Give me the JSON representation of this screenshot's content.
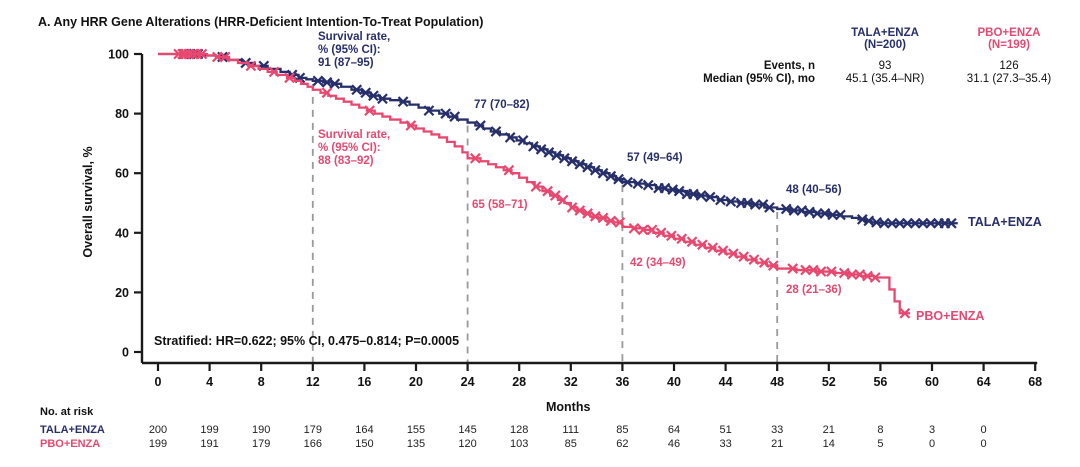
{
  "title": "A. Any HRR Gene Alterations (HRR-Deficient Intention-To-Treat Population)",
  "chart_data": {
    "type": "line",
    "subtype": "kaplan-meier-step",
    "title": "A. Any HRR Gene Alterations (HRR-Deficient Intention-To-Treat Population)",
    "xlabel": "Months",
    "ylabel": "Overall survival, %",
    "xlim": [
      0,
      68
    ],
    "ylim": [
      0,
      100
    ],
    "x_ticks": [
      0,
      4,
      8,
      12,
      16,
      20,
      24,
      28,
      32,
      36,
      40,
      44,
      48,
      52,
      56,
      60,
      64,
      68
    ],
    "y_ticks": [
      0,
      20,
      40,
      60,
      80,
      100
    ],
    "grid": false,
    "dashed_reference_months": [
      12,
      24,
      36,
      48
    ],
    "colors": {
      "tala": "#272f6b",
      "pbo": "#e8486f",
      "axis": "#1a1a1a",
      "dash": "#9a9a9a"
    },
    "series": [
      {
        "name": "TALA+ENZA",
        "end_label": "TALA+ENZA",
        "color": "#272f6b",
        "steps": [
          [
            0,
            100
          ],
          [
            3,
            100
          ],
          [
            3.5,
            99.5
          ],
          [
            4.5,
            99
          ],
          [
            5.5,
            98
          ],
          [
            6.5,
            97
          ],
          [
            7.5,
            96
          ],
          [
            8.5,
            95
          ],
          [
            9.5,
            94
          ],
          [
            10.2,
            93
          ],
          [
            10.9,
            92
          ],
          [
            11.5,
            91.5
          ],
          [
            12,
            91
          ],
          [
            12.8,
            90.5
          ],
          [
            13.5,
            90
          ],
          [
            14.2,
            89
          ],
          [
            15,
            88
          ],
          [
            15.8,
            87
          ],
          [
            16.5,
            86
          ],
          [
            17.2,
            85
          ],
          [
            18,
            84.5
          ],
          [
            18.8,
            84
          ],
          [
            19.5,
            83
          ],
          [
            20.2,
            82
          ],
          [
            21,
            81
          ],
          [
            21.8,
            80
          ],
          [
            22.5,
            79
          ],
          [
            23.2,
            78
          ],
          [
            24,
            77
          ],
          [
            24.6,
            76
          ],
          [
            25.2,
            75
          ],
          [
            25.8,
            74
          ],
          [
            26.5,
            73
          ],
          [
            27.2,
            72
          ],
          [
            27.8,
            71
          ],
          [
            28.4,
            70
          ],
          [
            29,
            69
          ],
          [
            29.6,
            68
          ],
          [
            30.2,
            67
          ],
          [
            30.8,
            66
          ],
          [
            31.4,
            65
          ],
          [
            32,
            64
          ],
          [
            32.6,
            63
          ],
          [
            33.2,
            62
          ],
          [
            33.8,
            61
          ],
          [
            34.4,
            60
          ],
          [
            35,
            59
          ],
          [
            35.5,
            58
          ],
          [
            36,
            57
          ],
          [
            37,
            56.5
          ],
          [
            37.8,
            56
          ],
          [
            38.6,
            55
          ],
          [
            39.4,
            54.5
          ],
          [
            40.2,
            54
          ],
          [
            41,
            53
          ],
          [
            41.8,
            52.5
          ],
          [
            42.6,
            52
          ],
          [
            43.4,
            51
          ],
          [
            44.2,
            50.5
          ],
          [
            45,
            50
          ],
          [
            46,
            49.5
          ],
          [
            47,
            48.5
          ],
          [
            48,
            48
          ],
          [
            49,
            47.5
          ],
          [
            50,
            47
          ],
          [
            51,
            46.5
          ],
          [
            52,
            46
          ],
          [
            53,
            45.5
          ],
          [
            53.8,
            45
          ],
          [
            54.3,
            44.5
          ],
          [
            54.8,
            44
          ],
          [
            55.3,
            43.5
          ],
          [
            56,
            43.2
          ],
          [
            62,
            43.2
          ]
        ],
        "censor_months": [
          2,
          2.4,
          2.8,
          3.1,
          5,
          6.8,
          8.2,
          10.4,
          11,
          12.4,
          13.1,
          13.7,
          15.4,
          16.1,
          16.7,
          17.4,
          19,
          21,
          22.3,
          23,
          25,
          26.2,
          27.3,
          28.3,
          29.1,
          29.7,
          30.3,
          30.9,
          31.5,
          32.1,
          32.7,
          33.3,
          33.9,
          34.5,
          35.1,
          35.7,
          36.4,
          37.2,
          38,
          38.8,
          39.3,
          39.9,
          40.4,
          41,
          41.5,
          42.1,
          42.8,
          43.6,
          44.4,
          45.2,
          45.7,
          46.3,
          46.9,
          47.4,
          48.7,
          49.3,
          49.9,
          50.5,
          51.1,
          51.7,
          52.3,
          52.9,
          54.6,
          55.1,
          55.7,
          56.3,
          56.9,
          57.5,
          58.1,
          58.7,
          59.3,
          59.9,
          60.5,
          61,
          61.5
        ]
      },
      {
        "name": "PBO+ENZA",
        "end_label": "PBO+ENZA",
        "color": "#e8486f",
        "steps": [
          [
            0,
            100
          ],
          [
            3.2,
            100
          ],
          [
            3.8,
            99.5
          ],
          [
            4.5,
            99
          ],
          [
            5.5,
            98
          ],
          [
            6.2,
            97
          ],
          [
            7,
            96
          ],
          [
            7.8,
            95
          ],
          [
            8.5,
            94
          ],
          [
            9.2,
            93
          ],
          [
            10,
            92
          ],
          [
            10.6,
            91
          ],
          [
            11.1,
            90
          ],
          [
            11.6,
            89
          ],
          [
            12,
            88
          ],
          [
            12.6,
            87
          ],
          [
            13.2,
            86
          ],
          [
            13.8,
            85
          ],
          [
            14.4,
            84
          ],
          [
            15,
            83
          ],
          [
            15.6,
            82
          ],
          [
            16.2,
            81
          ],
          [
            16.8,
            80
          ],
          [
            17.4,
            79
          ],
          [
            18,
            78
          ],
          [
            18.8,
            77
          ],
          [
            19.4,
            76
          ],
          [
            20,
            75
          ],
          [
            20.6,
            74
          ],
          [
            21.2,
            73
          ],
          [
            21.8,
            72
          ],
          [
            22.4,
            70.5
          ],
          [
            23,
            69
          ],
          [
            23.6,
            67
          ],
          [
            24,
            65
          ],
          [
            25,
            64
          ],
          [
            25.6,
            63
          ],
          [
            26.2,
            62
          ],
          [
            26.8,
            61
          ],
          [
            27.4,
            60
          ],
          [
            28,
            58.5
          ],
          [
            28.6,
            57
          ],
          [
            29.2,
            55.5
          ],
          [
            29.8,
            54
          ],
          [
            30.4,
            52.5
          ],
          [
            31,
            51
          ],
          [
            31.5,
            50
          ],
          [
            32,
            48.5
          ],
          [
            32.5,
            47.5
          ],
          [
            33,
            46.5
          ],
          [
            33.5,
            45.5
          ],
          [
            34.1,
            45
          ],
          [
            34.7,
            44
          ],
          [
            35.3,
            43.5
          ],
          [
            36,
            42
          ],
          [
            36.8,
            41.5
          ],
          [
            37.6,
            41
          ],
          [
            38.4,
            40
          ],
          [
            39.2,
            39
          ],
          [
            40,
            38
          ],
          [
            40.8,
            37
          ],
          [
            41.6,
            36
          ],
          [
            42.4,
            35
          ],
          [
            43.2,
            34
          ],
          [
            44,
            33
          ],
          [
            44.8,
            32
          ],
          [
            45.6,
            31
          ],
          [
            46.4,
            30
          ],
          [
            47.2,
            29
          ],
          [
            48,
            28
          ],
          [
            49.5,
            27.5
          ],
          [
            51,
            27
          ],
          [
            52.5,
            26.5
          ],
          [
            53.5,
            26
          ],
          [
            54.5,
            25.5
          ],
          [
            55.5,
            25
          ],
          [
            56.7,
            21
          ],
          [
            57.1,
            17
          ],
          [
            57.5,
            13
          ],
          [
            58.3,
            13
          ]
        ],
        "censor_months": [
          1.6,
          1.9,
          2.1,
          2.4,
          2.7,
          3,
          3.4,
          4.6,
          5.2,
          7.2,
          9,
          10.2,
          13.1,
          16.4,
          19.6,
          24.6,
          27.2,
          29.3,
          30.2,
          30.8,
          31.4,
          32.1,
          32.7,
          33.3,
          33.9,
          34.5,
          35.1,
          35.8,
          36.9,
          37.6,
          38.3,
          39,
          39.8,
          40.6,
          41.4,
          42.2,
          43,
          43.8,
          44.6,
          45.4,
          46.2,
          47,
          47.7,
          49.2,
          50.2,
          50.8,
          51.4,
          52.2,
          53.2,
          53.8,
          54.4,
          55,
          55.6,
          57.9
        ]
      }
    ],
    "annotations": [
      {
        "series": "TALA+ENZA",
        "month": 12,
        "lines": [
          "Survival rate,",
          "% (95% CI):",
          "91 (87–95)"
        ]
      },
      {
        "series": "PBO+ENZA",
        "month": 12,
        "lines": [
          "Survival rate,",
          "% (95% CI):",
          "88 (83–92)"
        ]
      },
      {
        "series": "TALA+ENZA",
        "month": 24,
        "lines": [
          "77 (70–82)"
        ]
      },
      {
        "series": "PBO+ENZA",
        "month": 24,
        "lines": [
          "65 (58–71)"
        ]
      },
      {
        "series": "TALA+ENZA",
        "month": 36,
        "lines": [
          "57 (49–64)"
        ]
      },
      {
        "series": "PBO+ENZA",
        "month": 36,
        "lines": [
          "42 (34–49)"
        ]
      },
      {
        "series": "TALA+ENZA",
        "month": 48,
        "lines": [
          "48 (40–56)"
        ]
      },
      {
        "series": "PBO+ENZA",
        "month": 48,
        "lines": [
          "28 (21–36)"
        ]
      }
    ],
    "hr_text": "Stratified: HR=0.622; 95% CI, 0.475–0.814; P=0.0005",
    "at_risk": {
      "label": "No. at risk",
      "months": [
        0,
        4,
        8,
        12,
        16,
        20,
        24,
        28,
        32,
        36,
        40,
        44,
        48,
        52,
        56,
        60,
        64
      ],
      "rows": [
        {
          "name": "TALA+ENZA",
          "color": "#272f6b",
          "values": [
            200,
            199,
            190,
            179,
            164,
            155,
            145,
            128,
            111,
            85,
            64,
            51,
            33,
            21,
            8,
            3,
            0
          ]
        },
        {
          "name": "PBO+ENZA",
          "color": "#e8486f",
          "values": [
            199,
            191,
            179,
            166,
            150,
            135,
            120,
            103,
            85,
            62,
            46,
            33,
            21,
            14,
            5,
            0,
            0
          ]
        }
      ]
    }
  },
  "stats_table": {
    "row_labels": {
      "events": "Events, n",
      "median": "Median (95% CI), mo"
    },
    "columns": [
      {
        "header_line1": "TALA+ENZA",
        "header_line2": "(N=200)",
        "color": "#272f6b",
        "events": "93",
        "median": "45.1 (35.4–NR)"
      },
      {
        "header_line1": "PBO+ENZA",
        "header_line2": "(N=199)",
        "color": "#e8486f",
        "events": "126",
        "median": "31.1 (27.3–35.4)"
      }
    ]
  }
}
